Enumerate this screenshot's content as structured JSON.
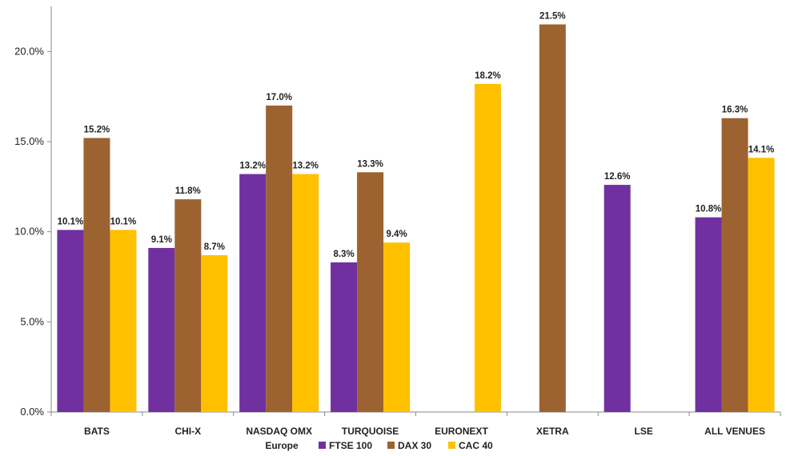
{
  "chart_data": {
    "type": "bar",
    "categories": [
      "BATS",
      "CHI-X",
      "NASDAQ OMX",
      "TURQUOISE",
      "EURONEXT",
      "XETRA",
      "LSE",
      "ALL VENUES"
    ],
    "series": [
      {
        "name": "FTSE 100",
        "color": "#7030A0",
        "values": [
          10.1,
          9.1,
          13.2,
          8.3,
          null,
          null,
          12.6,
          10.8
        ],
        "labels": [
          "10.1%",
          "9.1%",
          "13.2%",
          "8.3%",
          "",
          "",
          "12.6%",
          "10.8%"
        ]
      },
      {
        "name": "DAX 30",
        "color": "#9C6230",
        "values": [
          15.2,
          11.8,
          17.0,
          13.3,
          null,
          21.5,
          null,
          16.3
        ],
        "labels": [
          "15.2%",
          "11.8%",
          "17.0%",
          "13.3%",
          "",
          "21.5%",
          "",
          "16.3%"
        ]
      },
      {
        "name": "CAC 40",
        "color": "#FFC000",
        "values": [
          10.1,
          8.7,
          13.2,
          9.4,
          18.2,
          null,
          null,
          14.1
        ],
        "labels": [
          "10.1%",
          "8.7%",
          "13.2%",
          "9.4%",
          "18.2%",
          "",
          "",
          "14.1%"
        ]
      }
    ],
    "ylim": [
      0,
      22.5
    ],
    "yticks": [
      0,
      5,
      10,
      15,
      20
    ],
    "ytick_labels": [
      "0.0%",
      "5.0%",
      "10.0%",
      "15.0%",
      "20.0%"
    ],
    "legend": {
      "title": "Europe",
      "placement": "bottom"
    },
    "grid": false
  }
}
